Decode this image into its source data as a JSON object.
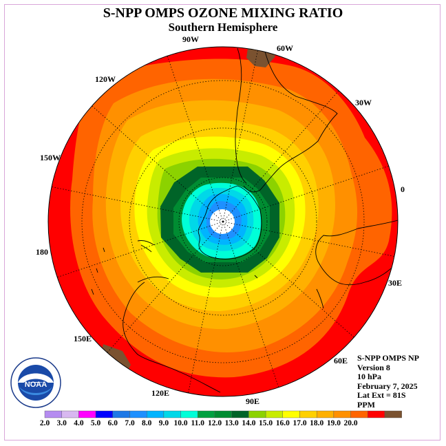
{
  "title": "S-NPP OMPS OZONE MIXING RATIO",
  "subtitle": "Southern Hemisphere",
  "longitude_labels": [
    "90W",
    "60W",
    "30W",
    "0",
    "30E",
    "60E",
    "90E",
    "120E",
    "150E",
    "180",
    "150W",
    "120W"
  ],
  "info": {
    "product": "S-NPP OMPS NP",
    "version": "Version 8",
    "level": "10 hPa",
    "date": "February 7, 2025",
    "lat_ext": "Lat Ext = 81S",
    "unit": "PPM"
  },
  "logo_text": "NOAA",
  "colorbar": {
    "ticks": [
      "2.0",
      "3.0",
      "4.0",
      "5.0",
      "6.0",
      "7.0",
      "8.0",
      "9.0",
      "10.0",
      "11.0",
      "12.0",
      "13.0",
      "14.0",
      "15.0",
      "16.0",
      "17.0",
      "18.0",
      "19.0",
      "20.0"
    ],
    "colors": [
      "#b58cf0",
      "#d8b8f0",
      "#ff00ff",
      "#0000ff",
      "#1e78e6",
      "#1e90ff",
      "#00b4ff",
      "#00d8e8",
      "#00ffd8",
      "#00a040",
      "#008c32",
      "#006428",
      "#8cd200",
      "#c8ec00",
      "#ffff00",
      "#ffd000",
      "#ffb000",
      "#ff9000",
      "#ff6400",
      "#ff0000",
      "#7a5230"
    ]
  },
  "map_colors": {
    "ocean_outer": "#ff0000",
    "band_18": "#ff6400",
    "band_17": "#ff9000",
    "band_16": "#ffb000",
    "band_15": "#ffd000",
    "band_14": "#ffff00",
    "band_13": "#c8ec00",
    "band_12": "#8cd200",
    "band_11": "#006428",
    "band_10": "#008c32",
    "band_9": "#00ffd8",
    "band_8": "#00d8e8",
    "band_7": "#00b4ff",
    "band_6": "#1e90ff",
    "pole": "#ffffff",
    "brown": "#7a5230"
  }
}
